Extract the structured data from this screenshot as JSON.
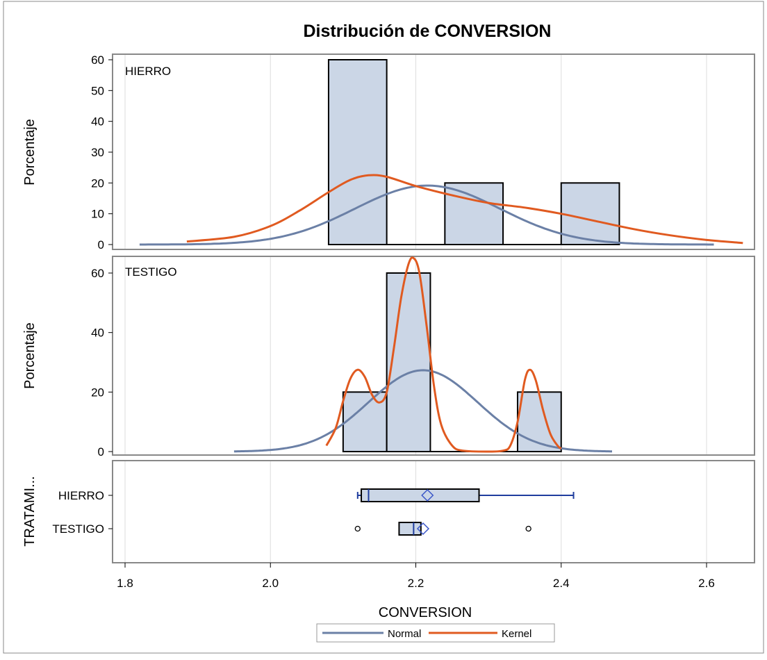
{
  "chart_data": {
    "type": "histogram",
    "title": "Distribución de CONVERSION",
    "xlabel": "CONVERSION",
    "xlim": [
      1.8,
      2.65
    ],
    "x_ticks": [
      "1.8",
      "2.0",
      "2.2",
      "2.4",
      "2.6"
    ],
    "legend": {
      "placement": "bottom-center",
      "entries": [
        {
          "name": "Normal",
          "color": "#6b80a6"
        },
        {
          "name": "Kernel",
          "color": "#e05a20"
        }
      ]
    },
    "colors": {
      "bar_fill": "#cbd6e6",
      "bar_edge": "#000000",
      "grid": "#dddddd",
      "box_line": "#1f3d9e"
    },
    "panels": [
      {
        "label": "HIERRO",
        "ylabel": "Porcentaje",
        "y_ticks": [
          "0",
          "10",
          "20",
          "30",
          "40",
          "50",
          "60"
        ],
        "ylim": [
          0,
          60
        ],
        "bars": [
          {
            "x0": 2.08,
            "x1": 2.16,
            "value": 60
          },
          {
            "x0": 2.24,
            "x1": 2.32,
            "value": 20
          },
          {
            "x0": 2.4,
            "x1": 2.48,
            "value": 20
          }
        ],
        "normal": {
          "mean": 2.216,
          "sd": 0.1,
          "scale": 0.048,
          "x_range": [
            1.82,
            2.61
          ]
        },
        "kernel_points": [
          [
            1.885,
            1
          ],
          [
            1.95,
            2.5
          ],
          [
            2.0,
            6
          ],
          [
            2.04,
            11
          ],
          [
            2.08,
            17
          ],
          [
            2.11,
            21
          ],
          [
            2.135,
            22.5
          ],
          [
            2.16,
            22
          ],
          [
            2.2,
            19
          ],
          [
            2.25,
            16
          ],
          [
            2.3,
            13.5
          ],
          [
            2.35,
            12
          ],
          [
            2.4,
            10
          ],
          [
            2.45,
            7.5
          ],
          [
            2.5,
            5
          ],
          [
            2.55,
            3
          ],
          [
            2.6,
            1.5
          ],
          [
            2.65,
            0.5
          ]
        ]
      },
      {
        "label": "TESTIGO",
        "ylabel": "Porcentaje",
        "y_ticks": [
          "0",
          "20",
          "40",
          "60"
        ],
        "ylim": [
          0,
          60
        ],
        "bars": [
          {
            "x0": 2.1,
            "x1": 2.16,
            "value": 20
          },
          {
            "x0": 2.16,
            "x1": 2.22,
            "value": 60
          },
          {
            "x0": 2.34,
            "x1": 2.4,
            "value": 20
          }
        ],
        "normal": {
          "mean": 2.21,
          "sd": 0.075,
          "scale": 0.0514,
          "x_range": [
            1.95,
            2.47
          ]
        },
        "kernel_points": [
          [
            2.077,
            2
          ],
          [
            2.09,
            8
          ],
          [
            2.1,
            17
          ],
          [
            2.11,
            24.5
          ],
          [
            2.12,
            27.5
          ],
          [
            2.13,
            25
          ],
          [
            2.14,
            19
          ],
          [
            2.15,
            16.5
          ],
          [
            2.16,
            20
          ],
          [
            2.17,
            35
          ],
          [
            2.18,
            52
          ],
          [
            2.19,
            63
          ],
          [
            2.197,
            65
          ],
          [
            2.205,
            60
          ],
          [
            2.215,
            42
          ],
          [
            2.225,
            22
          ],
          [
            2.235,
            9
          ],
          [
            2.25,
            2
          ],
          [
            2.265,
            0.3
          ],
          [
            2.3,
            0
          ],
          [
            2.32,
            0.3
          ],
          [
            2.33,
            2
          ],
          [
            2.34,
            10
          ],
          [
            2.35,
            24
          ],
          [
            2.357,
            27.5
          ],
          [
            2.365,
            24
          ],
          [
            2.375,
            14
          ],
          [
            2.385,
            6
          ],
          [
            2.395,
            2
          ],
          [
            2.4,
            1
          ]
        ]
      }
    ],
    "box_panel": {
      "ylabel": "TRATAMI...",
      "categories": [
        {
          "name": "HIERRO",
          "whisker_low": 2.12,
          "q1": 2.125,
          "median": 2.135,
          "q3": 2.287,
          "whisker_high": 2.417,
          "mean": 2.216,
          "outliers": []
        },
        {
          "name": "TESTIGO",
          "whisker_low": null,
          "q1": 2.177,
          "median": 2.197,
          "q3": 2.207,
          "whisker_high": null,
          "mean": 2.21,
          "outliers": [
            2.12,
            2.355
          ]
        }
      ]
    }
  }
}
